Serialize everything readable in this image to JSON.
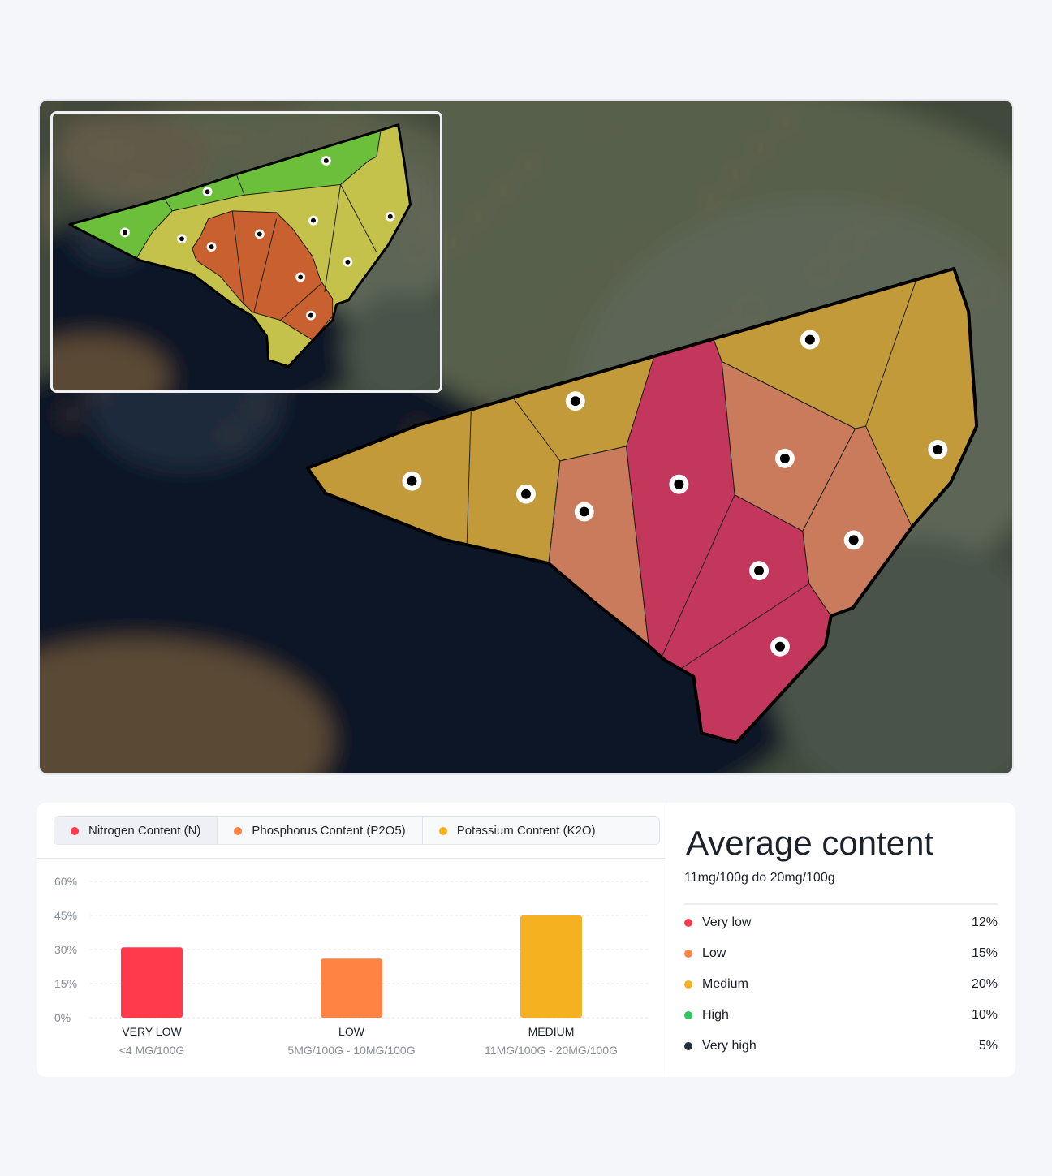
{
  "map": {
    "colors": {
      "gold": "#c29a3a",
      "salmon": "#c97b5c",
      "crimson": "#c3375d",
      "green": "#6cbf3a",
      "yellow": "#c4c24a",
      "orange": "#c9602f"
    }
  },
  "tabs": [
    {
      "label": "Nitrogen Content (N)",
      "color": "#ff3a4c",
      "active": true
    },
    {
      "label": "Phosphorus Content (P2O5)",
      "color": "#ff8444",
      "active": false
    },
    {
      "label": "Potassium Content (K2O)",
      "color": "#f5b120",
      "active": false
    }
  ],
  "chart_data": {
    "type": "bar",
    "categories": [
      "VERY LOW",
      "LOW",
      "MEDIUM"
    ],
    "subcategories": [
      "<4 MG/100G",
      "5MG/100G - 10MG/100G",
      "11MG/100G - 20MG/100G"
    ],
    "values": [
      31,
      26,
      45
    ],
    "colors": [
      "#ff3a4c",
      "#ff8444",
      "#f5b120"
    ],
    "yticks": [
      "0%",
      "15%",
      "30%",
      "45%",
      "60%"
    ],
    "ylim": [
      0,
      60
    ],
    "grid": true
  },
  "stats": {
    "title": "Average content",
    "range": "11mg/100g  do  20mg/100g",
    "items": [
      {
        "label": "Very low",
        "value": "12%",
        "color": "#ff3a4c"
      },
      {
        "label": "Low",
        "value": "15%",
        "color": "#ff8444"
      },
      {
        "label": "Medium",
        "value": "20%",
        "color": "#f5b120"
      },
      {
        "label": "High",
        "value": "10%",
        "color": "#2cc95a"
      },
      {
        "label": "Very high",
        "value": "5%",
        "color": "#262d3d"
      }
    ]
  }
}
